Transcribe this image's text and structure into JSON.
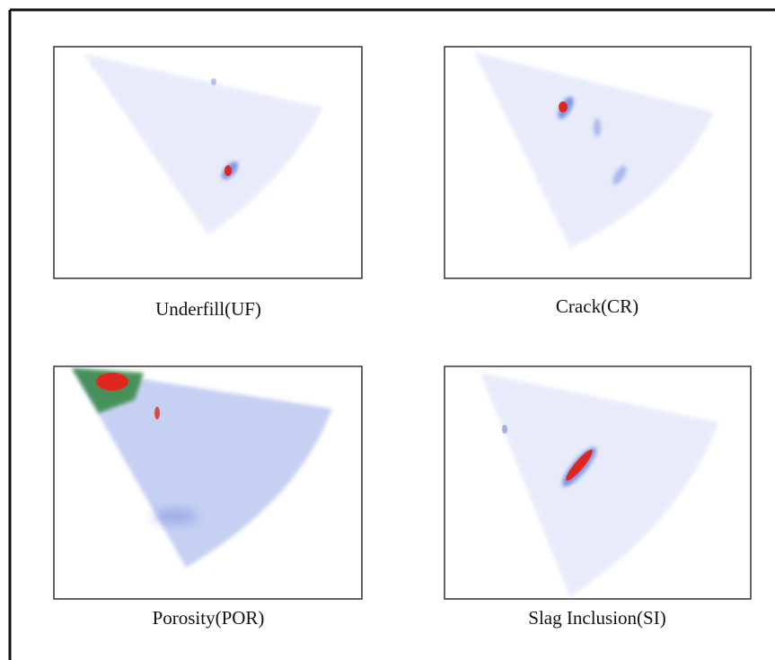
{
  "panels": [
    {
      "label": "Underfill(UF)"
    },
    {
      "label": "Crack(CR)"
    },
    {
      "label": "Porosity(POR)"
    },
    {
      "label": "Slag Inclusion(SI)"
    }
  ]
}
